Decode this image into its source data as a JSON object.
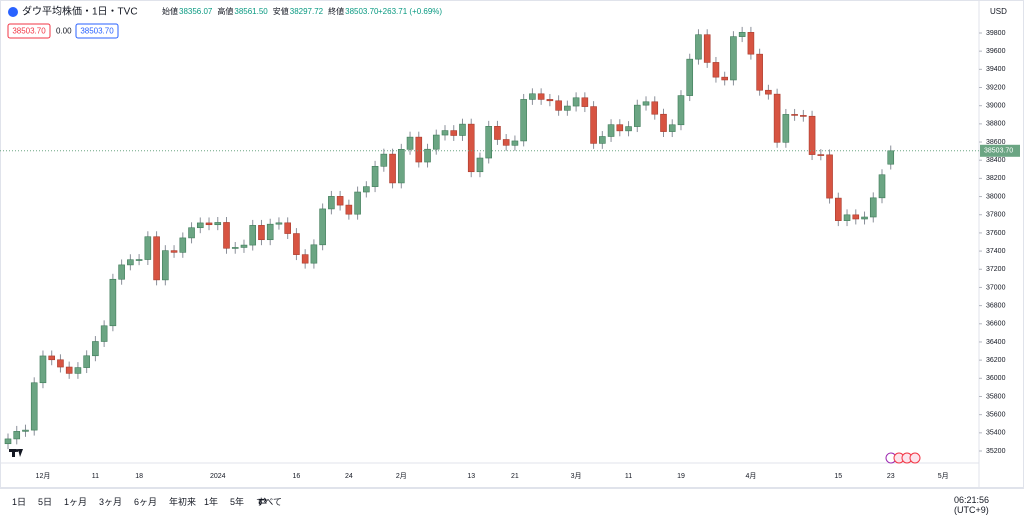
{
  "header": {
    "title": "ダウ平均株価・1日・TVC",
    "ohlc": [
      {
        "label": "始値",
        "value": "38356.07"
      },
      {
        "label": "高値",
        "value": "38561.50"
      },
      {
        "label": "安値",
        "value": "38297.72"
      },
      {
        "label": "終値",
        "value": "38503.70"
      }
    ],
    "change": "+263.71 (+0.69%)",
    "tags": [
      "38503.70",
      "0.00",
      "38503.70"
    ]
  },
  "chart_data": {
    "type": "candlestick",
    "price_axis_unit": "USD",
    "last_price_label": "38503.70",
    "up_color": "#6ba583",
    "down_color": "#d75442",
    "grid": false,
    "ylim": [
      35068,
      40163
    ],
    "yticks": [
      35200,
      35400,
      35600,
      35800,
      36000,
      36200,
      36400,
      36600,
      36800,
      37000,
      37200,
      37400,
      37600,
      37800,
      38000,
      38200,
      38400,
      38600,
      38800,
      39000,
      39200,
      39400,
      39600,
      39800
    ],
    "categories": [
      null,
      null,
      null,
      null,
      "12月",
      null,
      null,
      null,
      null,
      null,
      "11",
      null,
      null,
      null,
      null,
      "18",
      null,
      null,
      null,
      null,
      null,
      null,
      null,
      null,
      "2024",
      null,
      null,
      null,
      null,
      null,
      null,
      null,
      null,
      "16",
      null,
      null,
      null,
      null,
      null,
      "24",
      null,
      null,
      null,
      null,
      null,
      "2月",
      null,
      null,
      null,
      null,
      null,
      null,
      null,
      "13",
      null,
      null,
      null,
      null,
      "21",
      null,
      null,
      null,
      null,
      null,
      null,
      "3月",
      null,
      null,
      null,
      null,
      null,
      "11",
      null,
      null,
      null,
      null,
      null,
      "19",
      null,
      null,
      null,
      null,
      null,
      null,
      null,
      "4月",
      null,
      null,
      null,
      null,
      null,
      null,
      null,
      null,
      null,
      "15",
      null,
      null,
      null,
      null,
      null,
      "23",
      null,
      null,
      null,
      null,
      null,
      "5月"
    ],
    "open": [
      35280,
      35333,
      35416,
      35430,
      35951,
      36246,
      36204,
      36124,
      36054,
      36118,
      36248,
      36405,
      36578,
      37090,
      37248,
      37305,
      37307,
      37558,
      37083,
      37405,
      37386,
      37545,
      37657,
      37710,
      37690,
      37715,
      37431,
      37440,
      37466,
      37683,
      37525,
      37696,
      37711,
      37593,
      37361,
      37267,
      37469,
      37864,
      38002,
      37906,
      37806,
      38050,
      38109,
      38333,
      38467,
      38150,
      38520,
      38654,
      38380,
      38521,
      38677,
      38726,
      38672,
      38797,
      38273,
      38424,
      38773,
      38628,
      38564,
      38612,
      39069,
      39131,
      39069,
      39054,
      38949,
      38996,
      39087,
      38990,
      38585,
      38661,
      38791,
      38723,
      38770,
      39006,
      39043,
      38906,
      38715,
      38790,
      39111,
      39512,
      39781,
      39476,
      39314,
      39283,
      39760,
      39807,
      39567,
      39170,
      39127,
      38597,
      38904,
      38893,
      38884,
      38462,
      38459,
      37983,
      37735,
      37799,
      37753,
      37775,
      37986,
      38356.07,
      null,
      null,
      null,
      null,
      null,
      null
    ],
    "high": [
      35393,
      35476,
      35490,
      36011,
      36306,
      36306,
      36264,
      36184,
      36178,
      36308,
      36465,
      36638,
      37150,
      37308,
      37365,
      37367,
      37618,
      37618,
      37465,
      37465,
      37605,
      37717,
      37770,
      37770,
      37775,
      37775,
      37500,
      37526,
      37743,
      37743,
      37756,
      37771,
      37771,
      37653,
      37421,
      37529,
      37924,
      38062,
      38062,
      37966,
      38110,
      38169,
      38393,
      38527,
      38527,
      38580,
      38714,
      38714,
      38581,
      38737,
      38786,
      38786,
      38857,
      38857,
      38484,
      38833,
      38833,
      38688,
      38672,
      39129,
      39191,
      39191,
      39129,
      39114,
      39056,
      39147,
      39147,
      39050,
      38721,
      38851,
      38851,
      38830,
      39066,
      39103,
      39103,
      38966,
      38850,
      39171,
      39572,
      39841,
      39841,
      39536,
      39374,
      39820,
      39867,
      39867,
      39627,
      39230,
      39187,
      38964,
      38964,
      38953,
      38944,
      38522,
      38519,
      38043,
      37859,
      37859,
      37835,
      38046,
      38300,
      38561.5,
      null,
      null,
      null,
      null,
      null,
      null
    ],
    "low": [
      35220,
      35273,
      35356,
      35370,
      35891,
      36144,
      36064,
      35994,
      35994,
      36058,
      36188,
      36345,
      36518,
      37030,
      37188,
      37245,
      37247,
      37023,
      37023,
      37326,
      37326,
      37485,
      37597,
      37630,
      37630,
      37371,
      37371,
      37380,
      37406,
      37465,
      37465,
      37636,
      37533,
      37301,
      37207,
      37207,
      37409,
      37804,
      37846,
      37746,
      37746,
      37990,
      38049,
      38273,
      38090,
      38090,
      38460,
      38320,
      38320,
      38461,
      38617,
      38612,
      38612,
      38213,
      38213,
      38364,
      38568,
      38504,
      38504,
      38552,
      39009,
      39009,
      38994,
      38889,
      38889,
      38936,
      38930,
      38525,
      38525,
      38601,
      38663,
      38663,
      38710,
      38946,
      38846,
      38655,
      38655,
      38730,
      39051,
      39452,
      39416,
      39254,
      39223,
      39223,
      39700,
      39507,
      39110,
      39067,
      38537,
      38537,
      38833,
      38824,
      38402,
      38399,
      37923,
      37675,
      37675,
      37693,
      37693,
      37715,
      37926,
      38297.72,
      null,
      null,
      null,
      null,
      null,
      null
    ],
    "close": [
      35333,
      35416,
      35430,
      35951,
      36246,
      36204,
      36124,
      36054,
      36118,
      36248,
      36405,
      36578,
      37090,
      37248,
      37305,
      37307,
      37558,
      37083,
      37405,
      37386,
      37545,
      37657,
      37710,
      37690,
      37715,
      37431,
      37440,
      37466,
      37683,
      37525,
      37696,
      37711,
      37593,
      37361,
      37267,
      37469,
      37864,
      38002,
      37906,
      37806,
      38050,
      38109,
      38333,
      38467,
      38150,
      38520,
      38654,
      38380,
      38521,
      38677,
      38726,
      38672,
      38797,
      38273,
      38424,
      38773,
      38628,
      38564,
      38612,
      39069,
      39131,
      39069,
      39054,
      38949,
      38996,
      39087,
      38990,
      38585,
      38661,
      38791,
      38723,
      38770,
      39006,
      39043,
      38906,
      38715,
      38790,
      39111,
      39512,
      39781,
      39476,
      39314,
      39283,
      39760,
      39807,
      39567,
      39170,
      39127,
      38597,
      38904,
      38893,
      38884,
      38462,
      38459,
      37983,
      37735,
      37799,
      37753,
      37775,
      37986,
      38240,
      38503.7,
      null,
      null,
      null,
      null,
      null,
      null
    ]
  },
  "toolbar": {
    "ranges": [
      "1日",
      "5日",
      "1ヶ月",
      "3ヶ月",
      "6ヶ月",
      "年初来",
      "1年",
      "5年",
      "すべて"
    ],
    "time": "06:21:56 (UTC+9)"
  }
}
